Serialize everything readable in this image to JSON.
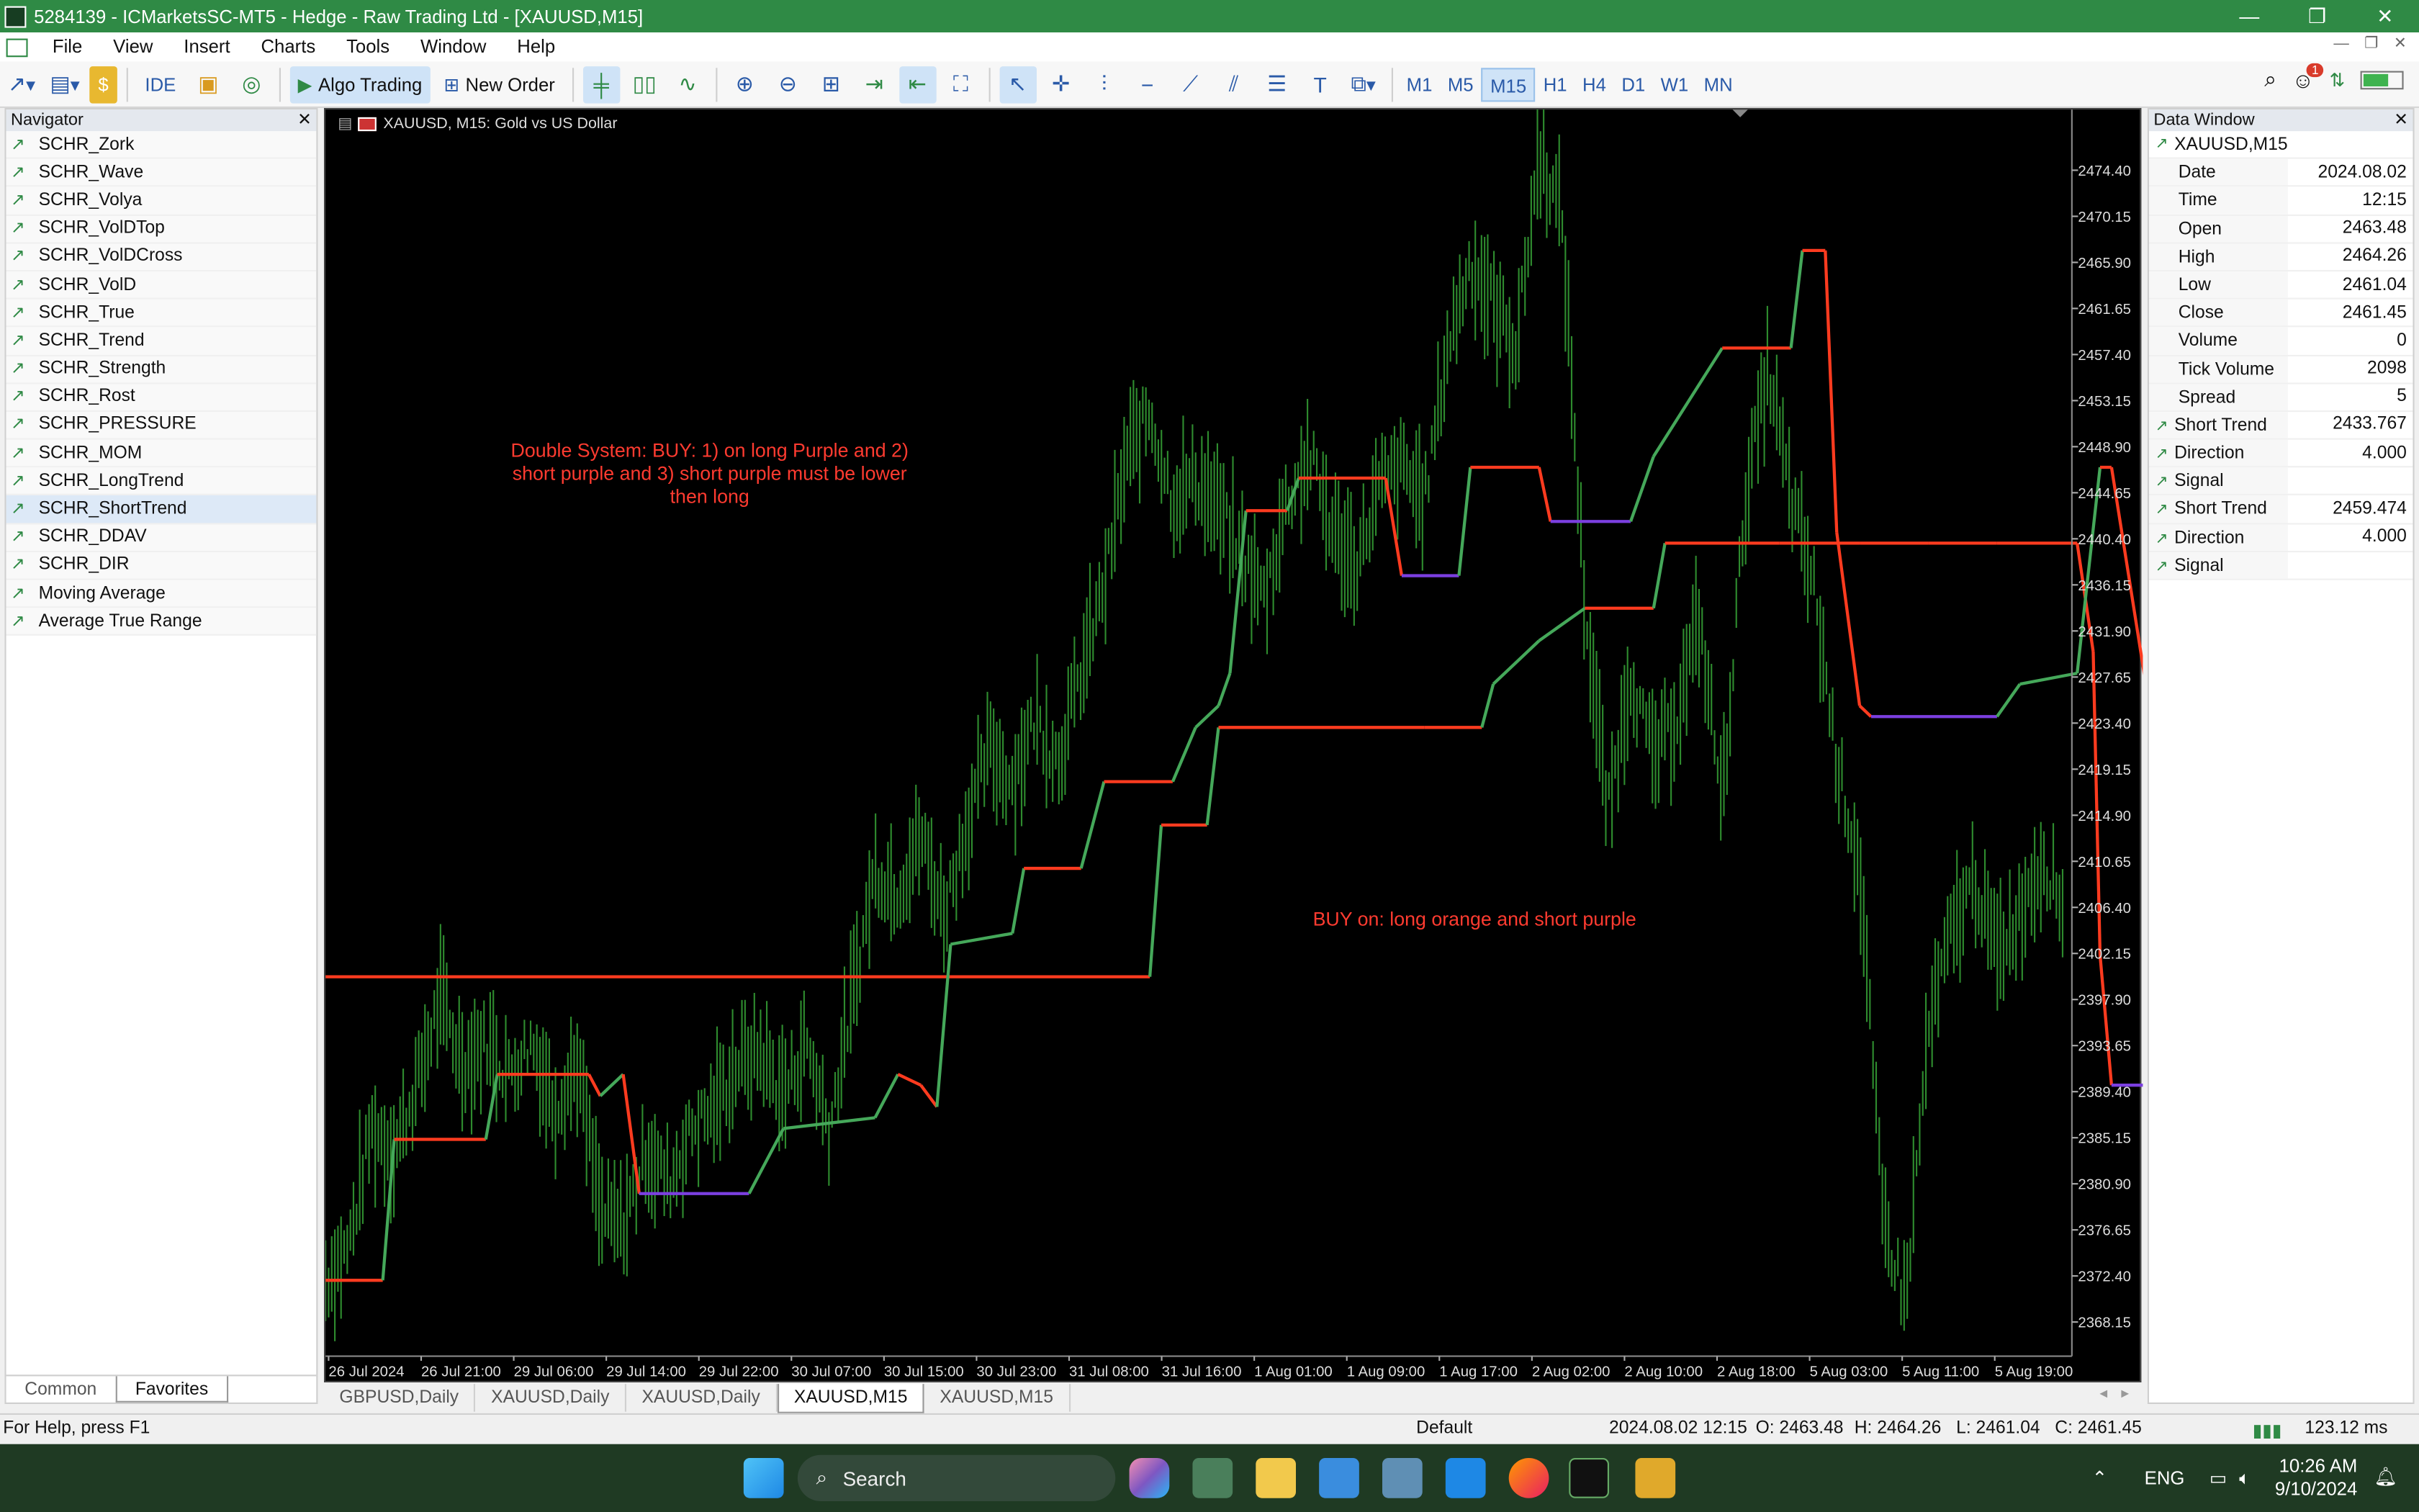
{
  "window": {
    "title": "5284139 - ICMarketsSC-MT5 - Hedge - Raw Trading Ltd - [XAUUSD,M15]",
    "controls": [
      "—",
      "❐",
      "✕"
    ]
  },
  "menu": [
    "File",
    "View",
    "Insert",
    "Charts",
    "Tools",
    "Window",
    "Help"
  ],
  "toolbar": {
    "ide_label": "IDE",
    "algo_label": "Algo Trading",
    "new_order_label": "New Order",
    "timeframes": [
      "M1",
      "M5",
      "M15",
      "H1",
      "H4",
      "D1",
      "W1",
      "MN"
    ],
    "active_timeframe": "M15",
    "notification_count": "1"
  },
  "navigator": {
    "title": "Navigator",
    "items": [
      "SCHR_Zork",
      "SCHR_Wave",
      "SCHR_Volya",
      "SCHR_VolDTop",
      "SCHR_VolDCross",
      "SCHR_VolD",
      "SCHR_True",
      "SCHR_Trend",
      "SCHR_Strength",
      "SCHR_Rost",
      "SCHR_PRESSURE",
      "SCHR_MOM",
      "SCHR_LongTrend",
      "SCHR_ShortTrend",
      "SCHR_DDAV",
      "SCHR_DIR",
      "Moving Average",
      "Average True Range"
    ],
    "selected": "SCHR_ShortTrend",
    "tabs": [
      "Common",
      "Favorites"
    ],
    "active_tab": "Favorites"
  },
  "chart": {
    "header": "XAUUSD, M15:  Gold vs US Dollar",
    "annotation_1": "Double System: BUY: 1) on long Purple and 2) short purple and 3) short purple must be lower then long",
    "annotation_2": "BUY on: long orange and short purple",
    "tabs": [
      "GBPUSD,Daily",
      "XAUUSD,Daily",
      "XAUUSD,Daily",
      "XAUUSD,M15",
      "XAUUSD,M15"
    ],
    "active_tab_index": 3
  },
  "chart_data": {
    "type": "line",
    "symbol": "XAUUSD",
    "timeframe": "M15",
    "ylim": [
      2365,
      2480
    ],
    "y_ticks": [
      2474.4,
      2470.15,
      2465.9,
      2461.65,
      2457.4,
      2453.15,
      2448.9,
      2444.65,
      2440.4,
      2436.15,
      2431.9,
      2427.65,
      2423.4,
      2419.15,
      2414.9,
      2410.65,
      2406.4,
      2402.15,
      2397.9,
      2393.65,
      2389.4,
      2385.15,
      2380.9,
      2376.65,
      2372.4,
      2368.15
    ],
    "x_ticks": [
      "26 Jul 2024",
      "26 Jul 21:00",
      "29 Jul 06:00",
      "29 Jul 14:00",
      "29 Jul 22:00",
      "30 Jul 07:00",
      "30 Jul 15:00",
      "30 Jul 23:00",
      "31 Jul 08:00",
      "31 Jul 16:00",
      "1 Aug 01:00",
      "1 Aug 09:00",
      "1 Aug 17:00",
      "2 Aug 02:00",
      "2 Aug 10:00",
      "2 Aug 18:00",
      "5 Aug 03:00",
      "5 Aug 11:00",
      "5 Aug 19:00"
    ],
    "colors": {
      "price": "#2e8b2e",
      "up": "#45a85a",
      "down": "#ff3b1f",
      "flat": "#7b3fe0",
      "background": "#000000"
    },
    "price": [
      2372,
      2375,
      2386,
      2384,
      2390,
      2398,
      2392,
      2394,
      2391,
      2394,
      2388,
      2392,
      2378,
      2377,
      2384,
      2381,
      2386,
      2388,
      2392,
      2393,
      2389,
      2394,
      2386,
      2398,
      2410,
      2408,
      2413,
      2406,
      2414,
      2421,
      2418,
      2424,
      2420,
      2428,
      2436,
      2448,
      2452,
      2444,
      2446,
      2443,
      2439,
      2435,
      2444,
      2448,
      2441,
      2438,
      2445,
      2447,
      2444,
      2458,
      2466,
      2462,
      2458,
      2476,
      2470,
      2434,
      2415,
      2428,
      2420,
      2424,
      2433,
      2416,
      2444,
      2456,
      2444,
      2436,
      2420,
      2410,
      2378,
      2370,
      2395,
      2404,
      2409,
      2402,
      2406,
      2411,
      2406
    ],
    "short_trend": [
      [
        0,
        2372
      ],
      [
        2.5,
        2372
      ],
      [
        3,
        2385
      ],
      [
        7,
        2385
      ],
      [
        7.5,
        2391
      ],
      [
        11.5,
        2391
      ],
      [
        12,
        2389
      ],
      [
        13,
        2391
      ],
      [
        13.7,
        2380
      ],
      [
        18.5,
        2380
      ],
      [
        20,
        2386
      ],
      [
        24,
        2387
      ],
      [
        25,
        2391
      ],
      [
        26,
        2390
      ],
      [
        26.7,
        2388
      ],
      [
        27.3,
        2403
      ],
      [
        30,
        2404
      ],
      [
        30.5,
        2410
      ],
      [
        33,
        2410
      ],
      [
        34,
        2418
      ],
      [
        37,
        2418
      ],
      [
        38,
        2423
      ],
      [
        39,
        2425
      ],
      [
        39.5,
        2428
      ],
      [
        40.2,
        2443
      ],
      [
        42,
        2443
      ],
      [
        42.5,
        2446
      ],
      [
        46.3,
        2446
      ],
      [
        47,
        2437
      ],
      [
        49.5,
        2437
      ],
      [
        50,
        2447
      ],
      [
        53,
        2447
      ],
      [
        53.5,
        2442
      ],
      [
        57,
        2442
      ],
      [
        58,
        2448
      ],
      [
        61,
        2458
      ],
      [
        64,
        2458
      ],
      [
        64.5,
        2467
      ],
      [
        65.5,
        2467
      ],
      [
        66,
        2441
      ],
      [
        67,
        2425
      ],
      [
        67.5,
        2424
      ],
      [
        73,
        2424
      ],
      [
        74,
        2427
      ],
      [
        76.5,
        2428
      ],
      [
        77.5,
        2447
      ],
      [
        78,
        2447
      ],
      [
        79.5,
        2427
      ],
      [
        80.5,
        2424
      ],
      [
        82,
        2405
      ],
      [
        83,
        2401
      ],
      [
        86.5,
        2401
      ]
    ],
    "long_trend": [
      [
        0,
        2400
      ],
      [
        36,
        2400
      ],
      [
        36.5,
        2414
      ],
      [
        38.5,
        2414
      ],
      [
        39,
        2423
      ],
      [
        48,
        2423
      ],
      [
        50.5,
        2423
      ],
      [
        51,
        2427
      ],
      [
        53,
        2431
      ],
      [
        55,
        2434
      ],
      [
        58,
        2434
      ],
      [
        58.5,
        2440
      ],
      [
        63.5,
        2440
      ],
      [
        64,
        2440
      ],
      [
        67,
        2440
      ],
      [
        70,
        2440
      ],
      [
        73,
        2440
      ],
      [
        76.5,
        2440
      ],
      [
        77.2,
        2430
      ],
      [
        77.5,
        2402
      ],
      [
        78,
        2390
      ],
      [
        81,
        2390
      ],
      [
        81.5,
        2395
      ],
      [
        82.5,
        2398
      ],
      [
        84.5,
        2401
      ]
    ]
  },
  "data_window": {
    "title": "Data Window",
    "symbol": "XAUUSD,M15",
    "rows": [
      {
        "k": "Date",
        "v": "2024.08.02"
      },
      {
        "k": "Time",
        "v": "12:15"
      },
      {
        "k": "Open",
        "v": "2463.48"
      },
      {
        "k": "High",
        "v": "2464.26"
      },
      {
        "k": "Low",
        "v": "2461.04"
      },
      {
        "k": "Close",
        "v": "2461.45"
      },
      {
        "k": "Volume",
        "v": "0"
      },
      {
        "k": "Tick Volume",
        "v": "2098"
      },
      {
        "k": "Spread",
        "v": "5"
      },
      {
        "k": "Short Trend",
        "v": "2433.767",
        "ind": true
      },
      {
        "k": "Direction",
        "v": "4.000",
        "ind": true
      },
      {
        "k": "Signal",
        "v": "",
        "ind": true
      },
      {
        "k": "Short Trend",
        "v": "2459.474",
        "ind": true
      },
      {
        "k": "Direction",
        "v": "4.000",
        "ind": true
      },
      {
        "k": "Signal",
        "v": "",
        "ind": true
      }
    ]
  },
  "status": {
    "help": "For Help, press F1",
    "profile": "Default",
    "datetime": "2024.08.02 12:15",
    "open": "O: 2463.48",
    "high": "H: 2464.26",
    "low": "L: 2461.04",
    "close": "C: 2461.45",
    "ping": "123.12 ms"
  },
  "taskbar": {
    "search_placeholder": "Search",
    "lang": "ENG",
    "time": "10:26 AM",
    "date": "9/10/2024"
  }
}
